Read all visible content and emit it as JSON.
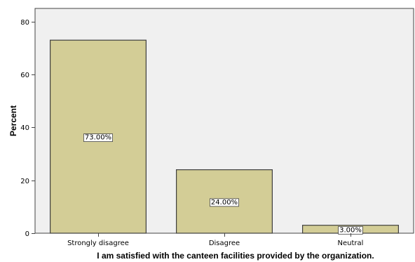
{
  "chart_data": {
    "type": "bar",
    "xlabel": "I am satisfied with the canteen facilities provided by the organization.",
    "ylabel": "Percent",
    "categories": [
      "Strongly disagree",
      "Disagree",
      "Neutral"
    ],
    "values": [
      73,
      24,
      3
    ],
    "data_labels": [
      "73.00%",
      "24.00%",
      "3.00%"
    ],
    "ylim": [
      0,
      85
    ],
    "yticks": [
      0,
      20,
      40,
      60,
      80
    ],
    "grid": false,
    "colors": {
      "bar_fill": "#d3cd96",
      "bar_stroke": "#3f3f3f",
      "plot_background": "#f0f0f0",
      "plot_border": "#444444"
    }
  }
}
